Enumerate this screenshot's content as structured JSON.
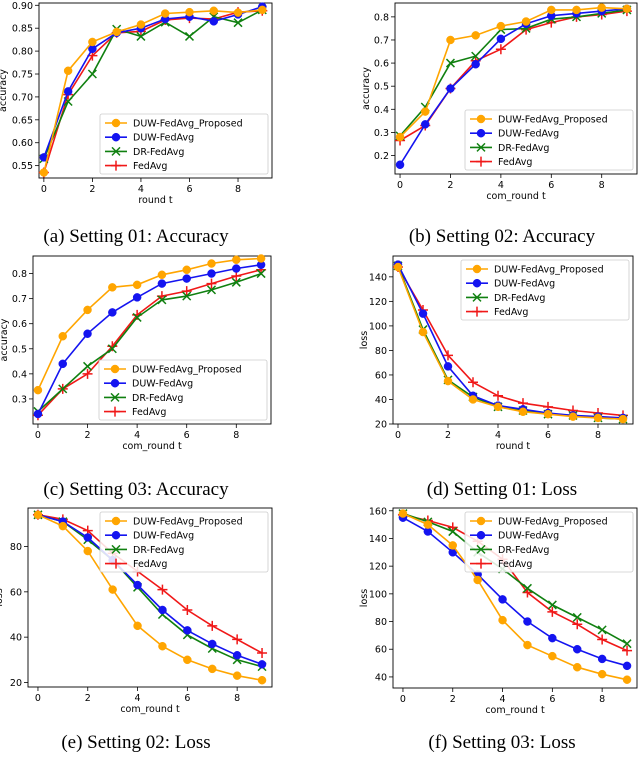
{
  "colors": {
    "DUW-FedAvg_Proposed": "#ffa500",
    "DUW-FedAvg": "#1414f0",
    "DR-FedAvg": "#108010",
    "FedAvg": "#f01818"
  },
  "chart_data": [
    {
      "type": "line",
      "caption": "(a) Setting 01: Accuracy",
      "xlabel": "round t",
      "ylabel": "accuracy",
      "xlim": [
        -0.2,
        9.4
      ],
      "ylim": [
        0.523,
        0.905
      ],
      "xticks": [
        0,
        2,
        4,
        6,
        8
      ],
      "yticks": [
        0.55,
        0.6,
        0.65,
        0.7,
        0.75,
        0.8,
        0.85,
        0.9
      ],
      "ytick_labels": [
        "0.55",
        "0.60",
        "0.65",
        "0.70",
        "0.75",
        "0.80",
        "0.85",
        "0.90"
      ],
      "legend": "lower-right",
      "x": [
        0,
        1,
        2,
        3,
        4,
        5,
        6,
        7,
        8,
        9
      ],
      "series": [
        {
          "name": "DUW-FedAvg_Proposed",
          "marker": "circle",
          "values": [
            0.535,
            0.757,
            0.82,
            0.842,
            0.858,
            0.882,
            0.885,
            0.888,
            0.884,
            0.89
          ]
        },
        {
          "name": "DUW-FedAvg",
          "marker": "circle",
          "values": [
            0.568,
            0.712,
            0.805,
            0.84,
            0.85,
            0.87,
            0.875,
            0.865,
            0.88,
            0.897
          ]
        },
        {
          "name": "DR-FedAvg",
          "marker": "x",
          "values": [
            0.565,
            0.69,
            0.75,
            0.848,
            0.832,
            0.863,
            0.832,
            0.875,
            0.862,
            0.89
          ]
        },
        {
          "name": "FedAvg",
          "marker": "plus",
          "values": [
            0.535,
            0.705,
            0.79,
            0.84,
            0.843,
            0.868,
            0.872,
            0.87,
            0.885,
            0.888
          ]
        }
      ]
    },
    {
      "type": "line",
      "caption": "(b) Setting 02: Accuracy",
      "xlabel": "com_round t",
      "ylabel": "accuracy",
      "xlim": [
        -0.2,
        9.4
      ],
      "ylim": [
        0.12,
        0.86
      ],
      "xticks": [
        0,
        2,
        4,
        6,
        8
      ],
      "yticks": [
        0.2,
        0.3,
        0.4,
        0.5,
        0.6,
        0.7,
        0.8
      ],
      "ytick_labels": [
        "0.2",
        "0.3",
        "0.4",
        "0.5",
        "0.6",
        "0.7",
        "0.8"
      ],
      "legend": "lower-right",
      "x": [
        0,
        1,
        2,
        3,
        4,
        5,
        6,
        7,
        8,
        9
      ],
      "series": [
        {
          "name": "DUW-FedAvg_Proposed",
          "marker": "circle",
          "values": [
            0.28,
            0.39,
            0.7,
            0.72,
            0.76,
            0.78,
            0.83,
            0.83,
            0.84,
            0.835
          ]
        },
        {
          "name": "DUW-FedAvg",
          "marker": "circle",
          "values": [
            0.16,
            0.335,
            0.49,
            0.595,
            0.705,
            0.77,
            0.805,
            0.815,
            0.825,
            0.835
          ]
        },
        {
          "name": "DR-FedAvg",
          "marker": "x",
          "values": [
            0.285,
            0.41,
            0.6,
            0.63,
            0.745,
            0.75,
            0.79,
            0.8,
            0.815,
            0.83
          ]
        },
        {
          "name": "FedAvg",
          "marker": "plus",
          "values": [
            0.265,
            0.33,
            0.49,
            0.61,
            0.66,
            0.745,
            0.775,
            0.8,
            0.81,
            0.825
          ]
        }
      ]
    },
    {
      "type": "line",
      "caption": "(c) Setting 03: Accuracy",
      "xlabel": "com_round t",
      "ylabel": "accuracy",
      "xlim": [
        -0.2,
        9.4
      ],
      "ylim": [
        0.2,
        0.87
      ],
      "xticks": [
        0,
        2,
        4,
        6,
        8
      ],
      "yticks": [
        0.3,
        0.4,
        0.5,
        0.6,
        0.7,
        0.8
      ],
      "ytick_labels": [
        "0.3",
        "0.4",
        "0.5",
        "0.6",
        "0.7",
        "0.8"
      ],
      "legend": "lower-right",
      "x": [
        0,
        1,
        2,
        3,
        4,
        5,
        6,
        7,
        8,
        9
      ],
      "series": [
        {
          "name": "DUW-FedAvg_Proposed",
          "marker": "circle",
          "values": [
            0.335,
            0.55,
            0.655,
            0.745,
            0.755,
            0.795,
            0.815,
            0.84,
            0.855,
            0.86
          ]
        },
        {
          "name": "DUW-FedAvg",
          "marker": "circle",
          "values": [
            0.24,
            0.44,
            0.56,
            0.645,
            0.705,
            0.76,
            0.78,
            0.8,
            0.82,
            0.835
          ]
        },
        {
          "name": "DR-FedAvg",
          "marker": "x",
          "values": [
            0.25,
            0.34,
            0.43,
            0.5,
            0.625,
            0.695,
            0.71,
            0.735,
            0.765,
            0.8
          ]
        },
        {
          "name": "FedAvg",
          "marker": "plus",
          "values": [
            0.235,
            0.34,
            0.4,
            0.51,
            0.635,
            0.71,
            0.73,
            0.76,
            0.79,
            0.815
          ]
        }
      ]
    },
    {
      "type": "line",
      "caption": "(d) Setting 01: Loss",
      "xlabel": "round t",
      "ylabel": "loss",
      "xlim": [
        -0.2,
        9.4
      ],
      "ylim": [
        20,
        157
      ],
      "xticks": [
        0,
        2,
        4,
        6,
        8
      ],
      "yticks": [
        20,
        40,
        60,
        80,
        100,
        120,
        140
      ],
      "ytick_labels": [
        "20",
        "40",
        "60",
        "80",
        "100",
        "120",
        "140"
      ],
      "legend": "top-right",
      "x": [
        0,
        1,
        2,
        3,
        4,
        5,
        6,
        7,
        8,
        9
      ],
      "series": [
        {
          "name": "DUW-FedAvg_Proposed",
          "marker": "circle",
          "values": [
            148,
            95,
            55,
            40,
            34,
            30,
            28,
            26,
            25,
            24
          ]
        },
        {
          "name": "DUW-FedAvg",
          "marker": "circle",
          "values": [
            150,
            110,
            67,
            43,
            35,
            32,
            29,
            27,
            26,
            25
          ]
        },
        {
          "name": "DR-FedAvg",
          "marker": "x",
          "values": [
            149,
            97,
            56,
            42,
            34,
            31,
            28,
            27,
            25,
            24
          ]
        },
        {
          "name": "FedAvg",
          "marker": "plus",
          "values": [
            148,
            113,
            76,
            54,
            43,
            37,
            34,
            31,
            29,
            27
          ]
        }
      ]
    },
    {
      "type": "line",
      "caption": "(e) Setting 02: Loss",
      "xlabel": "com_round t",
      "ylabel": "loss",
      "xlim": [
        -0.4,
        9.4
      ],
      "ylim": [
        18,
        97
      ],
      "xticks": [
        0,
        2,
        4,
        6,
        8
      ],
      "yticks": [
        20,
        40,
        60,
        80
      ],
      "ytick_labels": [
        "20",
        "40",
        "60",
        "80"
      ],
      "legend": "top-right",
      "x": [
        0,
        1,
        2,
        3,
        4,
        5,
        6,
        7,
        8,
        9
      ],
      "series": [
        {
          "name": "DUW-FedAvg_Proposed",
          "marker": "circle",
          "values": [
            94,
            89,
            78,
            61,
            45,
            36,
            30,
            26,
            23,
            21
          ]
        },
        {
          "name": "DUW-FedAvg",
          "marker": "circle",
          "values": [
            94,
            91,
            84,
            74,
            63,
            52,
            43,
            37,
            32,
            28
          ]
        },
        {
          "name": "DR-FedAvg",
          "marker": "x",
          "values": [
            94,
            91,
            83,
            74,
            62,
            50,
            41,
            35,
            30,
            27
          ]
        },
        {
          "name": "FedAvg",
          "marker": "plus",
          "values": [
            94,
            92,
            87,
            77,
            69,
            61,
            52,
            45,
            39,
            33
          ]
        }
      ]
    },
    {
      "type": "line",
      "caption": "(f) Setting 03: Loss",
      "xlabel": "com_round t",
      "ylabel": "loss",
      "xlim": [
        -0.4,
        9.4
      ],
      "ylim": [
        32,
        162
      ],
      "xticks": [
        0,
        2,
        4,
        6,
        8
      ],
      "yticks": [
        40,
        60,
        80,
        100,
        120,
        140,
        160
      ],
      "ytick_labels": [
        "40",
        "60",
        "80",
        "100",
        "120",
        "140",
        "160"
      ],
      "legend": "top-right",
      "x": [
        0,
        1,
        2,
        3,
        4,
        5,
        6,
        7,
        8,
        9
      ],
      "series": [
        {
          "name": "DUW-FedAvg_Proposed",
          "marker": "circle",
          "values": [
            158,
            150,
            135,
            110,
            81,
            63,
            55,
            47,
            42,
            38
          ]
        },
        {
          "name": "DUW-FedAvg",
          "marker": "circle",
          "values": [
            155,
            145,
            130,
            114,
            96,
            80,
            68,
            60,
            53,
            48
          ]
        },
        {
          "name": "DR-FedAvg",
          "marker": "x",
          "values": [
            158,
            152,
            145,
            130,
            118,
            104,
            92,
            83,
            74,
            64
          ]
        },
        {
          "name": "FedAvg",
          "marker": "plus",
          "values": [
            157,
            153,
            148,
            138,
            125,
            101,
            87,
            78,
            67,
            59
          ]
        }
      ]
    }
  ]
}
